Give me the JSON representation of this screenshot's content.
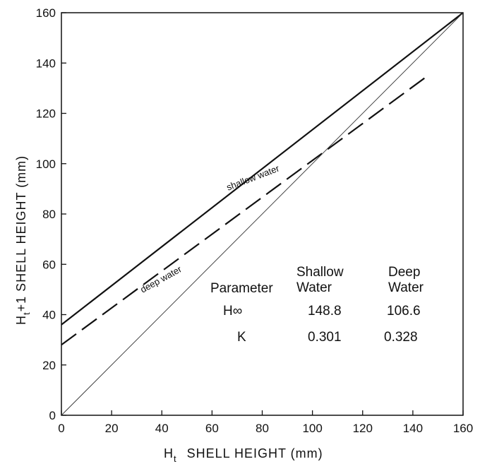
{
  "chart_data": {
    "type": "line",
    "xlabel": "Ht SHELL HEIGHT (mm)",
    "ylabel": "Ht+1 SHELL HEIGHT (mm)",
    "xlabel_main": "H",
    "xlabel_sub": "t",
    "xlabel_rest": "SHELL HEIGHT (mm)",
    "ylabel_main": "H",
    "ylabel_sub": "t",
    "ylabel_rest": "+1 SHELL HEIGHT (mm)",
    "xlim": [
      0,
      160
    ],
    "ylim": [
      0,
      160
    ],
    "x_ticks": [
      "0",
      "20",
      "40",
      "60",
      "80",
      "100",
      "120",
      "140",
      "160"
    ],
    "y_ticks": [
      "0",
      "20",
      "40",
      "60",
      "80",
      "100",
      "120",
      "140",
      "160"
    ],
    "grid": false,
    "series": [
      {
        "name": "shallow water",
        "style": "solid",
        "x": [
          0,
          160
        ],
        "y": [
          36,
          160
        ]
      },
      {
        "name": "deep water",
        "style": "dashed",
        "x": [
          0,
          146
        ],
        "y": [
          28,
          135
        ]
      },
      {
        "name": "",
        "style": "thin",
        "x": [
          0,
          160
        ],
        "y": [
          0,
          160
        ]
      }
    ],
    "table": {
      "headers": [
        "Parameter",
        "Shallow Water",
        "Deep Water"
      ],
      "rows": [
        [
          "H∞",
          "148.8",
          "106.6"
        ],
        [
          "K",
          "0.301",
          "0.328"
        ]
      ]
    }
  }
}
